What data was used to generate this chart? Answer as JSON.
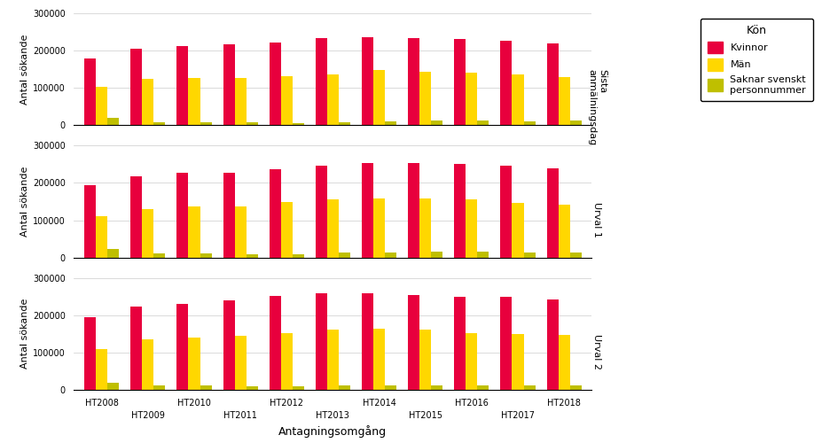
{
  "years": [
    "HT2008",
    "HT2009",
    "HT2010",
    "HT2011",
    "HT2012",
    "HT2013",
    "HT2014",
    "HT2015",
    "HT2016",
    "HT2017",
    "HT2018"
  ],
  "panel_labels": [
    "Sista\nanmälningsdag",
    "Urval 1",
    "Urval 2"
  ],
  "ylabel": "Antal sökande",
  "xlabel": "Antagningsomgång",
  "legend_title": "Kön",
  "legend_labels": [
    "Kvinnor",
    "Män",
    "Saknar svenskt\npersonnummer"
  ],
  "bar_colors": [
    "#E8003D",
    "#FFD700",
    "#BFBF00"
  ],
  "panel1_kvinnor": [
    178000,
    205000,
    212000,
    218000,
    222000,
    233000,
    235000,
    233000,
    232000,
    226000,
    220000
  ],
  "panel1_man": [
    103000,
    125000,
    127000,
    127000,
    132000,
    136000,
    148000,
    143000,
    140000,
    136000,
    130000
  ],
  "panel1_saknar": [
    20000,
    9000,
    9000,
    8000,
    7000,
    8000,
    11000,
    12000,
    12000,
    11000,
    12000
  ],
  "panel2_kvinnor": [
    193000,
    218000,
    227000,
    228000,
    237000,
    247000,
    254000,
    253000,
    250000,
    245000,
    238000
  ],
  "panel2_man": [
    110000,
    131000,
    136000,
    138000,
    148000,
    156000,
    158000,
    159000,
    155000,
    146000,
    142000
  ],
  "panel2_saknar": [
    22000,
    11000,
    12000,
    10000,
    9000,
    13000,
    14000,
    15000,
    15000,
    14000,
    14000
  ],
  "panel3_kvinnor": [
    195000,
    222000,
    230000,
    240000,
    252000,
    258000,
    258000,
    253000,
    250000,
    248000,
    243000
  ],
  "panel3_man": [
    110000,
    135000,
    140000,
    145000,
    152000,
    162000,
    164000,
    162000,
    152000,
    150000,
    148000
  ],
  "panel3_saknar": [
    18000,
    11000,
    11000,
    9000,
    10000,
    12000,
    13000,
    13000,
    12000,
    12000,
    12000
  ],
  "ylim": [
    0,
    300000
  ],
  "yticks": [
    0,
    100000,
    200000,
    300000
  ],
  "bar_width": 0.25,
  "background_color": "#FFFFFF",
  "grid_color": "#CCCCCC"
}
